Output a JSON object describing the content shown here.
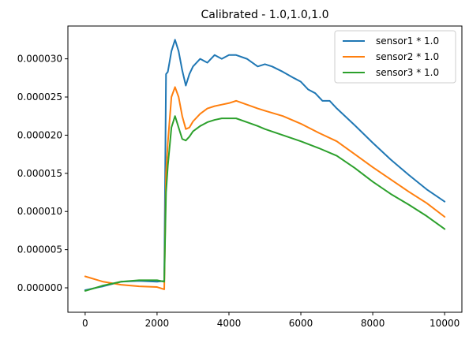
{
  "chart_data": {
    "type": "line",
    "title": "Calibrated - 1.0,1.0,1.0",
    "xlabel": "",
    "ylabel": "",
    "xlim": [
      -480,
      10480
    ],
    "ylim": [
      -3.2e-06,
      3.43e-05
    ],
    "x_ticks": [
      0,
      2000,
      4000,
      6000,
      8000,
      10000
    ],
    "x_tick_labels": [
      "0",
      "2000",
      "4000",
      "6000",
      "8000",
      "10000"
    ],
    "y_ticks": [
      0.0,
      5e-06,
      1e-05,
      1.5e-05,
      2e-05,
      2.5e-05,
      3e-05
    ],
    "y_tick_labels": [
      "0.000000",
      "0.000005",
      "0.000010",
      "0.000015",
      "0.000020",
      "0.000025",
      "0.000030"
    ],
    "grid": false,
    "legend_position": "top-right",
    "series": [
      {
        "name": "sensor1 * 1.0",
        "color": "#1f77b4",
        "x": [
          0,
          500,
          1000,
          1500,
          2000,
          2200,
          2250,
          2300,
          2400,
          2500,
          2600,
          2700,
          2800,
          2900,
          3000,
          3200,
          3400,
          3600,
          3800,
          4000,
          4200,
          4500,
          4800,
          5000,
          5200,
          5500,
          5800,
          6000,
          6200,
          6400,
          6600,
          6800,
          7000,
          7500,
          8000,
          8500,
          9000,
          9500,
          10000
        ],
        "y": [
          -3e-07,
          2e-07,
          8e-07,
          9e-07,
          8e-07,
          9e-07,
          2.8e-05,
          2.83e-05,
          3.1e-05,
          3.25e-05,
          3.1e-05,
          2.85e-05,
          2.65e-05,
          2.8e-05,
          2.9e-05,
          3e-05,
          2.95e-05,
          3.05e-05,
          3e-05,
          3.05e-05,
          3.05e-05,
          3e-05,
          2.9e-05,
          2.93e-05,
          2.9e-05,
          2.83e-05,
          2.75e-05,
          2.7e-05,
          2.6e-05,
          2.55e-05,
          2.45e-05,
          2.45e-05,
          2.35e-05,
          2.13e-05,
          1.9e-05,
          1.68e-05,
          1.48e-05,
          1.29e-05,
          1.13e-05
        ]
      },
      {
        "name": "sensor2 * 1.0",
        "color": "#ff7f0e",
        "x": [
          0,
          500,
          1000,
          1500,
          2000,
          2200,
          2250,
          2300,
          2400,
          2500,
          2600,
          2700,
          2800,
          2900,
          3000,
          3200,
          3400,
          3600,
          3800,
          4000,
          4200,
          4500,
          4800,
          5000,
          5500,
          6000,
          6500,
          7000,
          7500,
          8000,
          8500,
          9000,
          9500,
          10000
        ],
        "y": [
          1.5e-06,
          8e-07,
          4e-07,
          2e-07,
          1e-07,
          -2e-07,
          1.5e-05,
          1.9e-05,
          2.5e-05,
          2.63e-05,
          2.5e-05,
          2.25e-05,
          2.08e-05,
          2.1e-05,
          2.18e-05,
          2.28e-05,
          2.35e-05,
          2.38e-05,
          2.4e-05,
          2.42e-05,
          2.45e-05,
          2.4e-05,
          2.35e-05,
          2.32e-05,
          2.25e-05,
          2.15e-05,
          2.03e-05,
          1.92e-05,
          1.75e-05,
          1.58e-05,
          1.42e-05,
          1.26e-05,
          1.11e-05,
          9.3e-06
        ]
      },
      {
        "name": "sensor3 * 1.0",
        "color": "#2ca02c",
        "x": [
          0,
          500,
          1000,
          1500,
          2000,
          2200,
          2250,
          2300,
          2400,
          2500,
          2600,
          2700,
          2800,
          2900,
          3000,
          3200,
          3400,
          3600,
          3800,
          4000,
          4200,
          4500,
          4800,
          5000,
          5500,
          6000,
          6500,
          7000,
          7500,
          8000,
          8500,
          9000,
          9500,
          10000
        ],
        "y": [
          -4e-07,
          3e-07,
          8e-07,
          1e-06,
          1e-06,
          8e-07,
          1.25e-05,
          1.6e-05,
          2.1e-05,
          2.25e-05,
          2.1e-05,
          1.95e-05,
          1.93e-05,
          1.98e-05,
          2.05e-05,
          2.12e-05,
          2.17e-05,
          2.2e-05,
          2.22e-05,
          2.22e-05,
          2.22e-05,
          2.17e-05,
          2.12e-05,
          2.08e-05,
          2e-05,
          1.92e-05,
          1.83e-05,
          1.73e-05,
          1.57e-05,
          1.39e-05,
          1.23e-05,
          1.09e-05,
          9.4e-06,
          7.7e-06
        ]
      }
    ]
  }
}
